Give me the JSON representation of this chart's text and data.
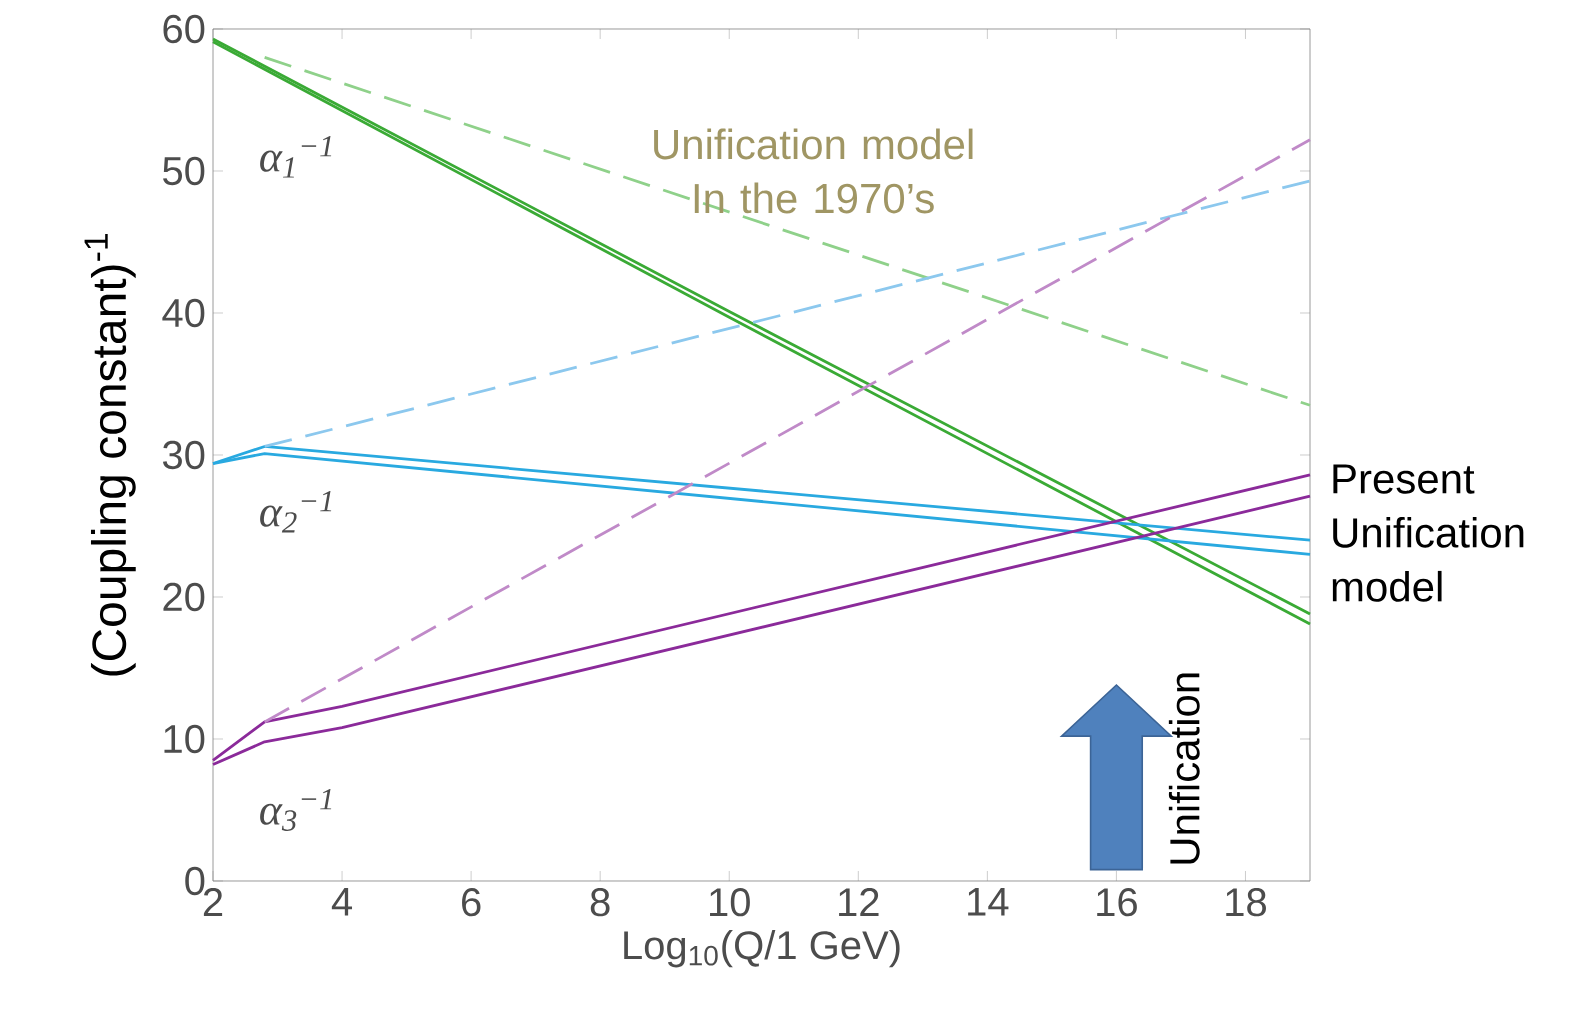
{
  "chart_data": {
    "type": "line",
    "xlabel": "Log$_{10}$(Q/1 GeV)",
    "ylabel": "(Coupling constant)$^{-1}$",
    "xlim": [
      2,
      19
    ],
    "ylim": [
      0,
      60
    ],
    "xticks": [
      2,
      4,
      6,
      8,
      10,
      12,
      14,
      16,
      18
    ],
    "yticks": [
      0,
      10,
      20,
      30,
      40,
      50,
      60
    ],
    "grid": false,
    "series": [
      {
        "color": "#3aaa35",
        "x": [
          2,
          10,
          19
        ],
        "values": [
          59.3,
          40.1,
          18.8
        ]
      },
      {
        "color": "#3aaa35",
        "x": [
          2,
          10,
          19
        ],
        "values": [
          59.1,
          39.7,
          18.1
        ]
      },
      {
        "color": "#8fd18a",
        "line_style": "dashed",
        "x": [
          2.8,
          19
        ],
        "values": [
          58.0,
          33.5
        ]
      },
      {
        "color": "#29a9e0",
        "x": [
          2,
          2.8,
          19
        ],
        "values": [
          29.4,
          30.6,
          24.0
        ]
      },
      {
        "color": "#29a9e0",
        "x": [
          2,
          2.8,
          19
        ],
        "values": [
          29.4,
          30.1,
          23.0
        ]
      },
      {
        "color": "#8cc8ee",
        "line_style": "dashed",
        "x": [
          2.8,
          19
        ],
        "values": [
          30.6,
          49.3
        ]
      },
      {
        "color": "#8b2a9a",
        "x": [
          2,
          2.8,
          4,
          19
        ],
        "values": [
          8.5,
          11.2,
          12.3,
          28.6
        ]
      },
      {
        "color": "#8b2a9a",
        "x": [
          2,
          2.8,
          4,
          19
        ],
        "values": [
          8.2,
          9.8,
          10.8,
          27.1
        ]
      },
      {
        "color": "#c08ac8",
        "line_style": "dashed",
        "x": [
          2.8,
          19
        ],
        "values": [
          11.2,
          52.2
        ]
      }
    ],
    "annotations": [
      "α$_{1}$$^{−1}$",
      "α$_{2}$$^{−1}$",
      "α$_{3}$$^{−1}$",
      "Unification model In the 1970’s",
      "Present Unification model",
      "Unification"
    ]
  }
}
